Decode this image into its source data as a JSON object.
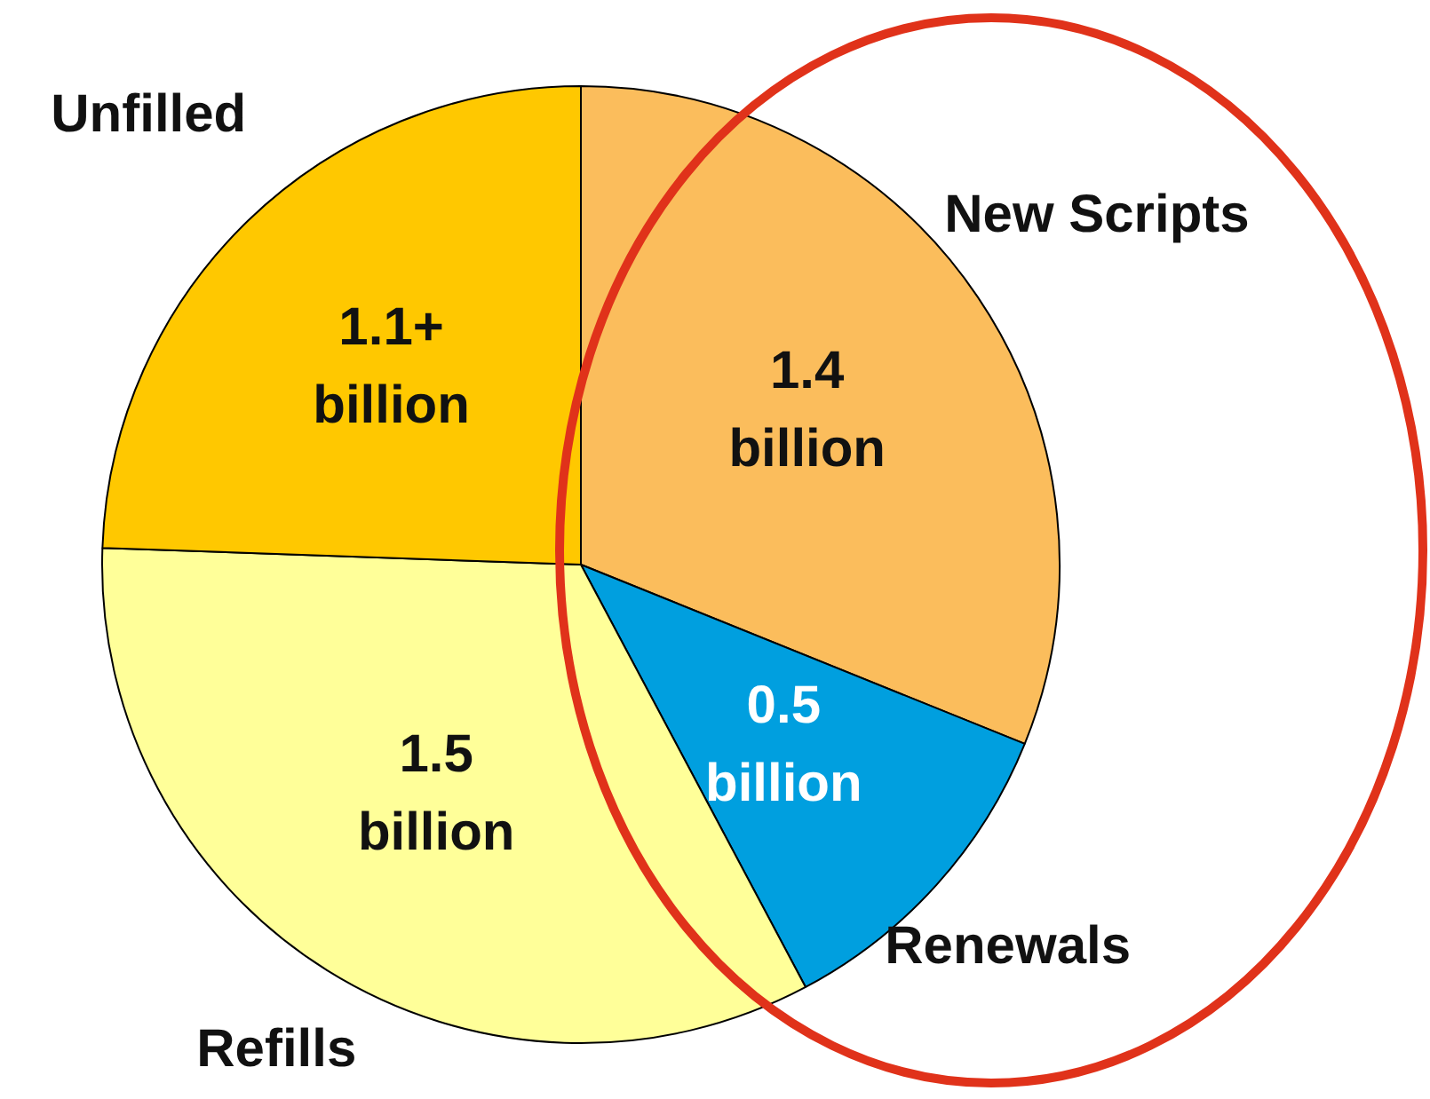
{
  "chart_data": {
    "type": "pie",
    "categories": [
      "New Scripts",
      "Renewals",
      "Refills",
      "Unfilled"
    ],
    "values": [
      1.4,
      0.5,
      1.5,
      1.1
    ],
    "value_labels": [
      "1.4 billion",
      "0.5 billion",
      "1.5 billion",
      "1.1+ billion"
    ],
    "colors": [
      "#fbbd5c",
      "#009fdf",
      "#ffff99",
      "#ffc800"
    ],
    "legend": false
  }
}
